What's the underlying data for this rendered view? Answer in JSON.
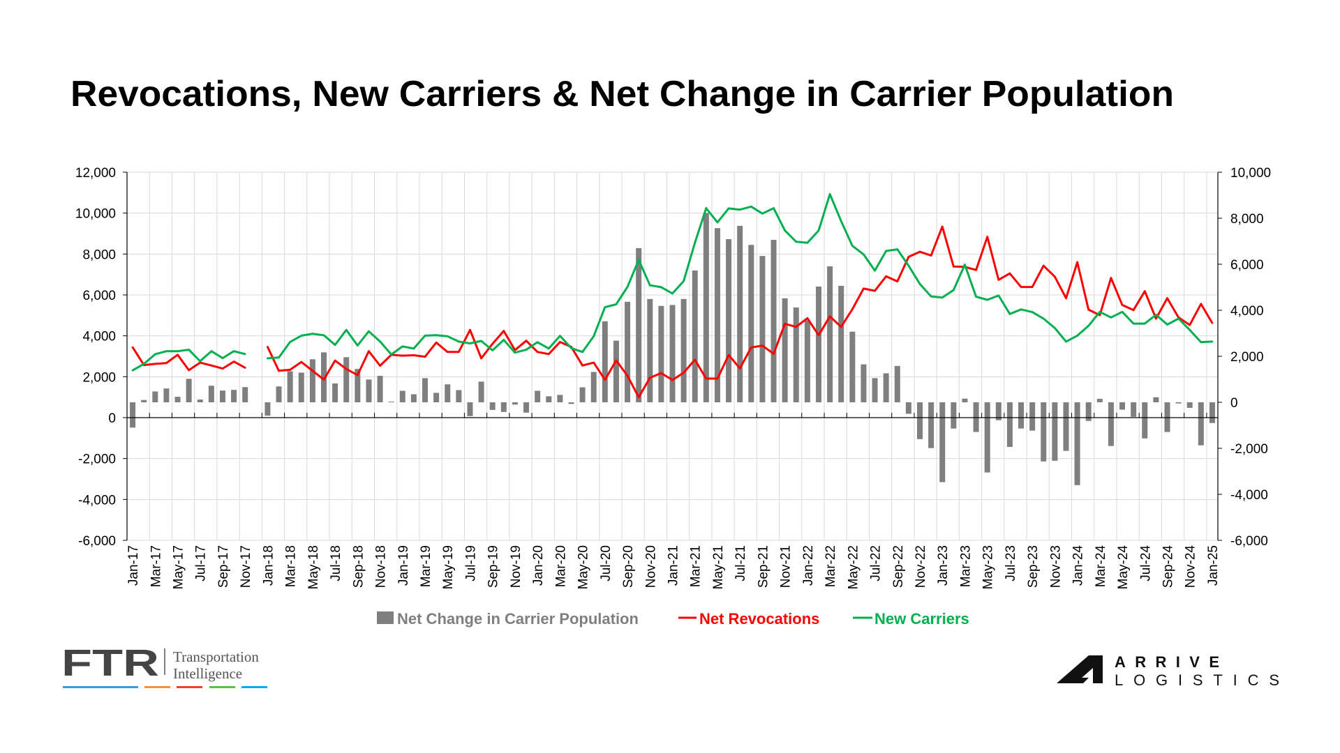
{
  "title": "Revocations, New Carriers & Net Change in Carrier Population",
  "legend": {
    "bars": "Net Change in Carrier Population",
    "red": "Net Revocations",
    "green": "New Carriers"
  },
  "logos": {
    "ftr": "FTR",
    "ftr_line1": "Transportation",
    "ftr_line2": "Intelligence",
    "arrive_line1": "ARRIVE",
    "arrive_line2": "LOGISTICS"
  },
  "colors": {
    "bars": "#7f7f7f",
    "red": "#ff0000",
    "green": "#00b050",
    "grid": "#d9d9d9"
  },
  "chart_data": {
    "type": "bar+line",
    "title": "Revocations, New Carriers & Net Change in Carrier Population",
    "x_tick_labels": [
      "Jan-17",
      "Mar-17",
      "May-17",
      "Jul-17",
      "Sep-17",
      "Nov-17",
      "Jan-18",
      "Mar-18",
      "May-18",
      "Jul-18",
      "Sep-18",
      "Nov-18",
      "Jan-19",
      "Mar-19",
      "May-19",
      "Jul-19",
      "Sep-19",
      "Nov-19",
      "Jan-20",
      "Mar-20",
      "May-20",
      "Jul-20",
      "Sep-20",
      "Nov-20",
      "Jan-21",
      "Mar-21",
      "May-21",
      "Jul-21",
      "Sep-21",
      "Nov-21",
      "Jan-22",
      "Mar-22",
      "May-22",
      "Jul-22",
      "Sep-22",
      "Nov-22",
      "Jan-23",
      "Mar-23",
      "May-23",
      "Jul-23",
      "Sep-23",
      "Nov-23",
      "Jan-24",
      "Mar-24",
      "May-24",
      "Jul-24",
      "Sep-24",
      "Nov-24",
      "Jan-25"
    ],
    "left_axis": {
      "ylim": [
        -6000,
        12000
      ],
      "ticks": [
        "-6,000",
        "-4,000",
        "-2,000",
        "0",
        "2,000",
        "4,000",
        "6,000",
        "8,000",
        "10,000",
        "12,000"
      ]
    },
    "right_axis": {
      "ylim": [
        -6000,
        10000
      ],
      "ticks": [
        "-6,000",
        "-4,000",
        "-2,000",
        "0",
        "2,000",
        "4,000",
        "6,000",
        "8,000",
        "10,000"
      ]
    },
    "legend_position": "bottom",
    "grid": true,
    "series": [
      {
        "name": "Net Change in Carrier Population",
        "kind": "bar",
        "axis": "right",
        "values": [
          -1100,
          100,
          470,
          600,
          240,
          1020,
          120,
          720,
          510,
          540,
          660,
          null,
          -580,
          690,
          1350,
          1290,
          1870,
          2170,
          820,
          1960,
          1450,
          990,
          1150,
          30,
          500,
          350,
          1050,
          410,
          780,
          530,
          -600,
          900,
          -330,
          -420,
          -100,
          -450,
          500,
          260,
          320,
          -70,
          650,
          1320,
          3520,
          2680,
          4370,
          6700,
          4490,
          4190,
          4230,
          4490,
          5730,
          8230,
          7570,
          7090,
          7670,
          6840,
          6360,
          7060,
          4520,
          4120,
          3560,
          5030,
          5910,
          5060,
          3070,
          1650,
          1050,
          1260,
          1580,
          -500,
          -1600,
          -1990,
          -3470,
          -1140,
          160,
          -1290,
          -3050,
          -780,
          -1940,
          -1140,
          -1230,
          -2570,
          -2540,
          -2110,
          -3600,
          -810,
          150,
          -1900,
          -320,
          -630,
          -1570,
          220,
          -1290,
          -50,
          -240,
          -1870,
          -900
        ]
      },
      {
        "name": "Net Revocations",
        "kind": "line",
        "axis": "left",
        "values": [
          3440,
          2570,
          2630,
          2670,
          3070,
          2320,
          2690,
          2550,
          2400,
          2740,
          2440,
          null,
          3460,
          2290,
          2340,
          2720,
          2290,
          1860,
          2790,
          2380,
          2080,
          3250,
          2540,
          3070,
          3030,
          3050,
          2980,
          3670,
          3210,
          3210,
          4290,
          2900,
          3610,
          4240,
          3300,
          3760,
          3210,
          3110,
          3700,
          3460,
          2550,
          2690,
          1850,
          2800,
          2050,
          1000,
          1950,
          2180,
          1840,
          2200,
          2830,
          1910,
          1910,
          3060,
          2410,
          3430,
          3520,
          3120,
          4590,
          4440,
          4860,
          4030,
          4950,
          4440,
          5300,
          6310,
          6200,
          6910,
          6660,
          7860,
          8110,
          7930,
          9340,
          7390,
          7370,
          7220,
          8840,
          6740,
          7050,
          6390,
          6390,
          7430,
          6890,
          5840,
          7600,
          5280,
          5010,
          6830,
          5510,
          5260,
          6180,
          4840,
          5840,
          4900,
          4530,
          5560,
          4630
        ]
      },
      {
        "name": "New Carriers",
        "kind": "line",
        "axis": "left",
        "values": [
          2310,
          2630,
          3100,
          3250,
          3250,
          3320,
          2760,
          3250,
          2910,
          3250,
          3110,
          null,
          2900,
          2940,
          3700,
          4010,
          4100,
          4030,
          3560,
          4290,
          3530,
          4220,
          3720,
          3090,
          3480,
          3380,
          4010,
          4030,
          3980,
          3720,
          3630,
          3750,
          3290,
          3800,
          3180,
          3320,
          3690,
          3380,
          4000,
          3400,
          3210,
          3980,
          5400,
          5540,
          6390,
          7710,
          6470,
          6380,
          6070,
          6680,
          8550,
          10240,
          9550,
          10230,
          10170,
          10320,
          9980,
          10240,
          9150,
          8600,
          8550,
          9150,
          10930,
          9610,
          8400,
          7980,
          7190,
          8150,
          8230,
          7430,
          6540,
          5930,
          5870,
          6240,
          7480,
          5910,
          5760,
          5970,
          5070,
          5290,
          5160,
          4840,
          4380,
          3720,
          4010,
          4490,
          5170,
          4900,
          5170,
          4600,
          4600,
          5030,
          4550,
          4840,
          4290,
          3690,
          3720
        ]
      }
    ]
  }
}
